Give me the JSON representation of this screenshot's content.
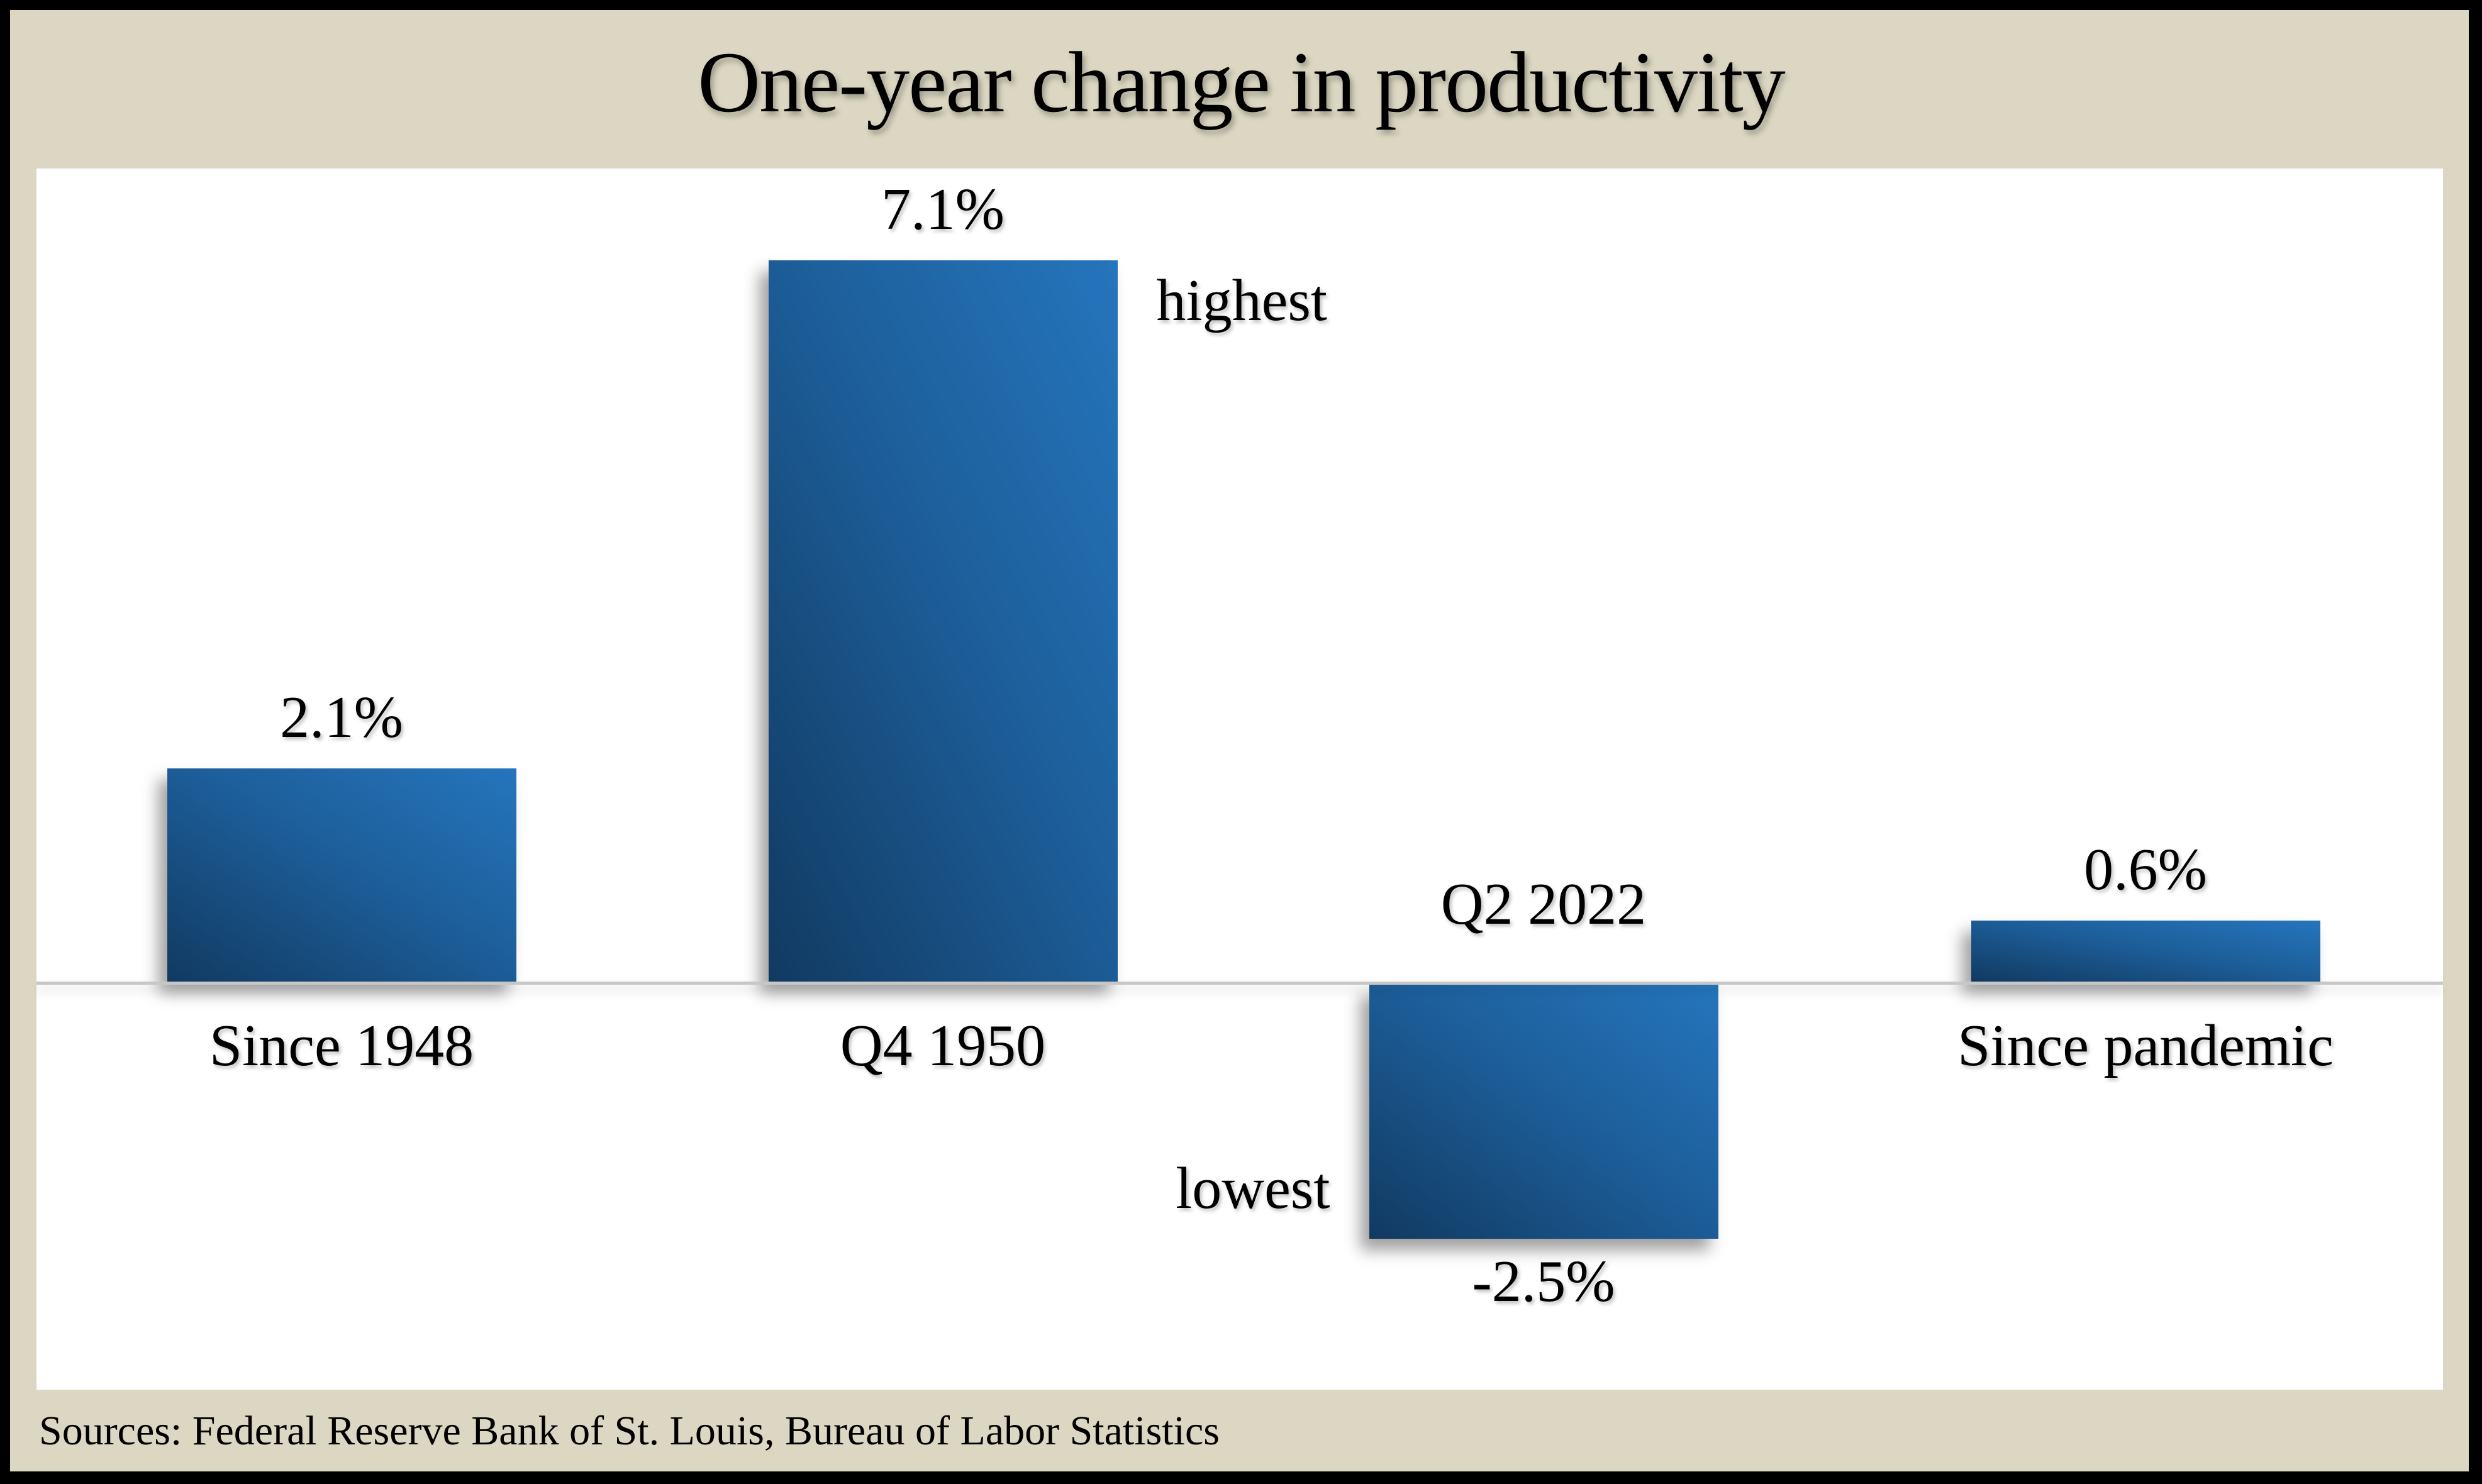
{
  "title": "One-year change in productivity",
  "source_note": "Sources: Federal Reserve Bank of St. Louis, Bureau of Labor Statistics",
  "colors": {
    "frame_background": "#dbd7c2",
    "plot_background": "#ffffff",
    "border": "#000000",
    "axis_line": "#c7c7c7",
    "text": "#000000",
    "bar_gradient_dark": "#113a61",
    "bar_gradient_mid": "#1d5f9b",
    "bar_gradient_light": "#2575bd"
  },
  "chart_data": {
    "type": "bar",
    "title": "One-year change in productivity",
    "categories": [
      "Since 1948",
      "Q4 1950",
      "Q2 2022",
      "Since pandemic"
    ],
    "values": [
      2.1,
      7.1,
      -2.5,
      0.6
    ],
    "value_labels": [
      "2.1%",
      "7.1%",
      "-2.5%",
      "0.6%"
    ],
    "annotations": [
      {
        "text": "highest",
        "category": "Q4 1950",
        "position": "right-of-bar-top"
      },
      {
        "text": "lowest",
        "category": "Q2 2022",
        "position": "left-of-bar-bottom"
      }
    ],
    "baseline": 0,
    "ylim": [
      -3.5,
      8.1
    ],
    "xlabel": "",
    "ylabel": "",
    "grid": false,
    "legend": false
  }
}
